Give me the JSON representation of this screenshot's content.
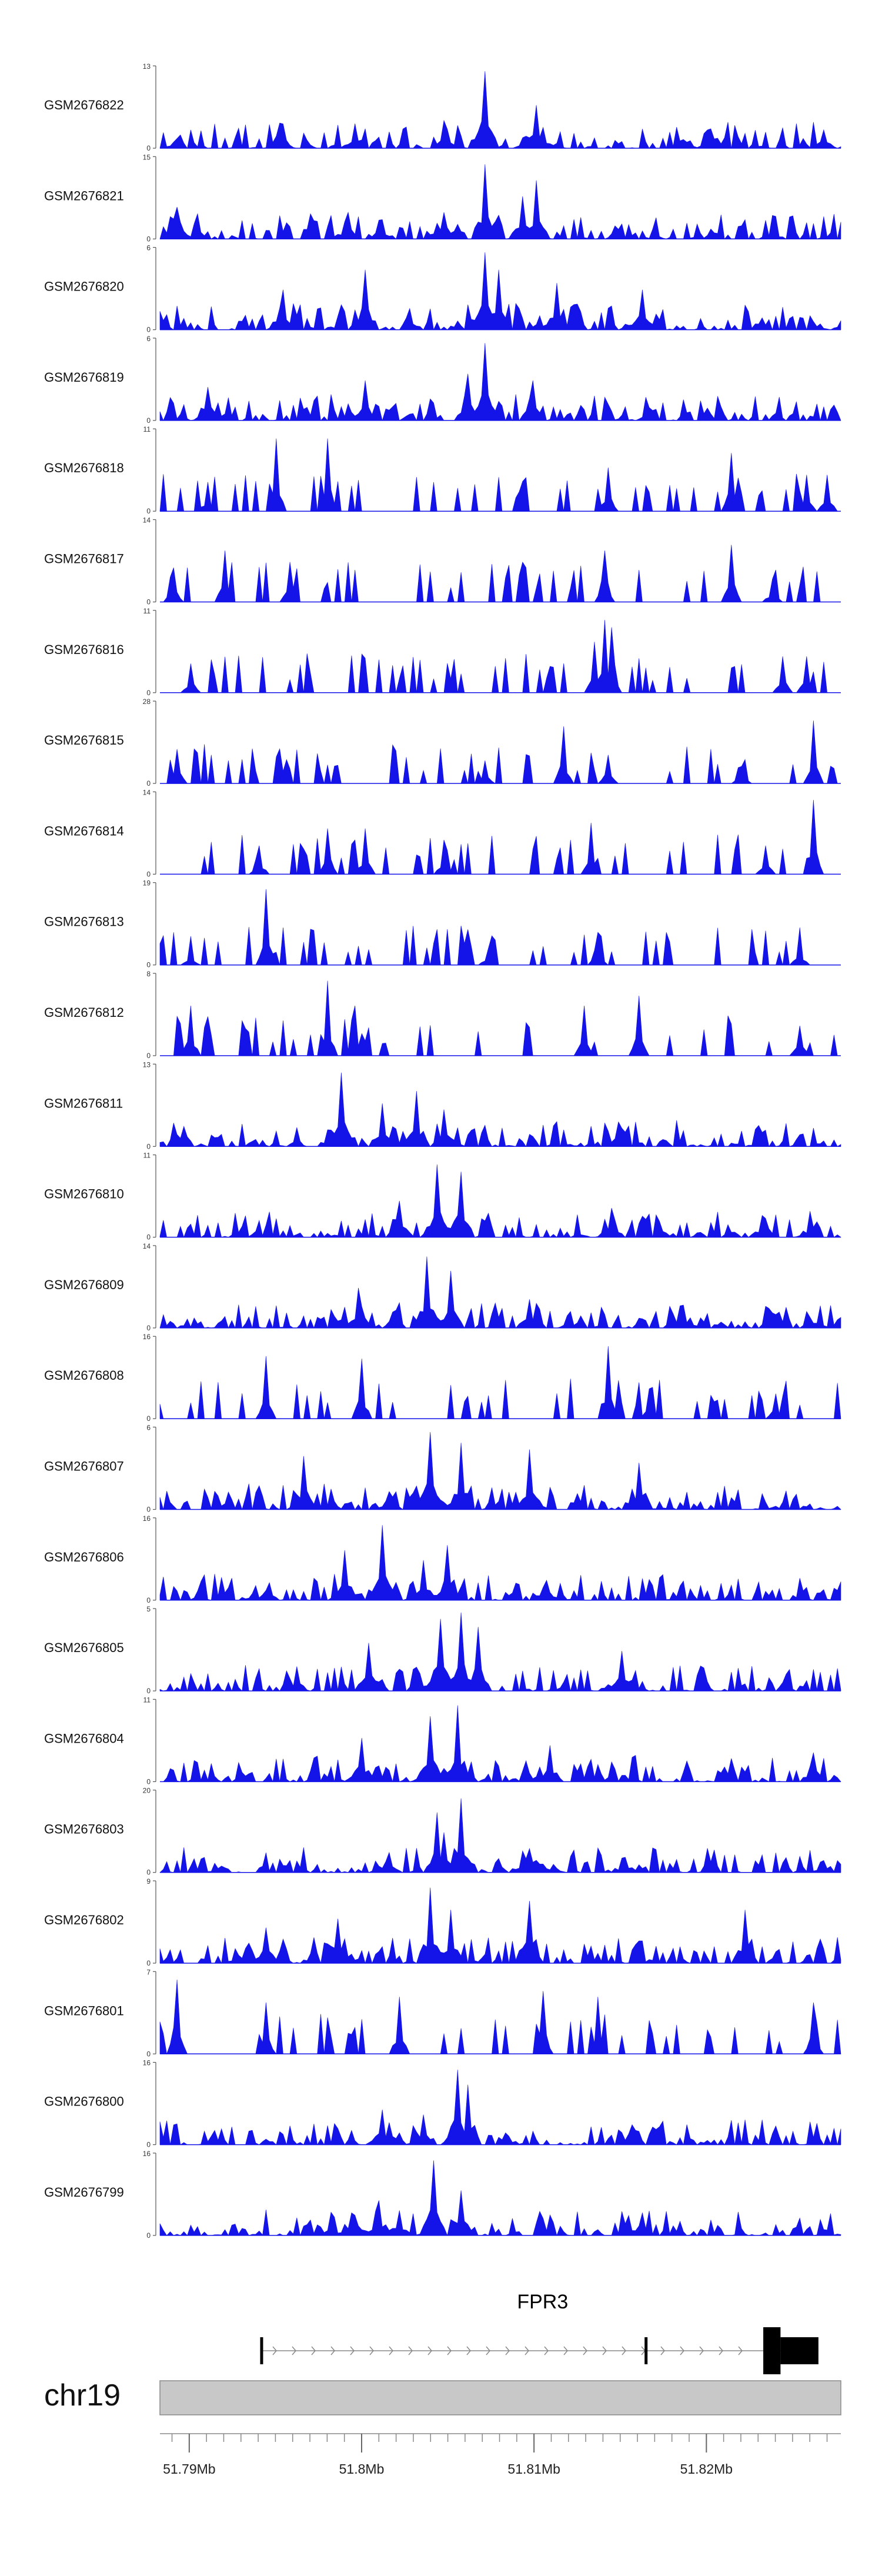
{
  "chart_data": {
    "type": "area",
    "title": "",
    "xlabel": "",
    "ylabel": "",
    "x_range": [
      51.7883,
      51.8278
    ],
    "x_unit": "Mb",
    "bins": 200,
    "color": "#1414e8",
    "chromosome": "chr19",
    "xticks": [
      {
        "value": 51.79,
        "label": "51.79Mb"
      },
      {
        "value": 51.8,
        "label": "51.8Mb"
      },
      {
        "value": 51.81,
        "label": "51.81Mb"
      },
      {
        "value": 51.82,
        "label": "51.82Mb"
      }
    ],
    "gene": {
      "name": "FPR3",
      "strand": "+",
      "start": 51.7942,
      "end": 51.8265,
      "exons": [
        {
          "start": 51.7942,
          "end": 51.79425,
          "kind": "line"
        },
        {
          "start": 51.8165,
          "end": 51.81655,
          "kind": "line"
        },
        {
          "start": 51.8233,
          "end": 51.8243,
          "kind": "block-tall"
        },
        {
          "start": 51.8243,
          "end": 51.8265,
          "kind": "block"
        }
      ]
    },
    "series": [
      {
        "name": "GSM2676822",
        "ymax": 13,
        "profile": "dense",
        "seed": 22,
        "peaks": [
          [
            51.8071,
            12.5
          ],
          [
            51.8101,
            7
          ],
          [
            51.8047,
            4.5
          ],
          [
            51.7997,
            4
          ],
          [
            51.8268,
            3
          ],
          [
            51.7953,
            4
          ]
        ]
      },
      {
        "name": "GSM2676821",
        "ymax": 15,
        "profile": "dense",
        "seed": 21,
        "peaks": [
          [
            51.8071,
            14
          ],
          [
            51.8101,
            11
          ],
          [
            51.8094,
            8
          ],
          [
            51.7893,
            6
          ],
          [
            51.8047,
            5
          ],
          [
            51.7993,
            5
          ]
        ]
      },
      {
        "name": "GSM2676820",
        "ymax": 6,
        "profile": "dense",
        "seed": 20,
        "peaks": [
          [
            51.8071,
            5.8
          ],
          [
            51.808,
            4.5
          ],
          [
            51.8003,
            4.5
          ],
          [
            51.8113,
            3.5
          ],
          [
            51.8162,
            3
          ],
          [
            51.7954,
            3
          ]
        ]
      },
      {
        "name": "GSM2676819",
        "ymax": 6,
        "profile": "dense",
        "seed": 19,
        "peaks": [
          [
            51.8071,
            5.8
          ],
          [
            51.8062,
            3.5
          ],
          [
            51.81,
            3
          ],
          [
            51.8003,
            3
          ],
          [
            51.791,
            2.5
          ]
        ]
      },
      {
        "name": "GSM2676818",
        "ymax": 11,
        "profile": "sparse",
        "seed": 18,
        "peaks": [
          [
            51.795,
            10
          ],
          [
            51.7981,
            10
          ],
          [
            51.8215,
            8
          ],
          [
            51.8143,
            6
          ],
          [
            51.8258,
            5
          ],
          [
            51.791,
            4
          ],
          [
            51.827,
            5
          ]
        ]
      },
      {
        "name": "GSM2676817",
        "ymax": 14,
        "profile": "sparse",
        "seed": 17,
        "peaks": [
          [
            51.8214,
            10
          ],
          [
            51.8141,
            9
          ],
          [
            51.792,
            9
          ],
          [
            51.7958,
            7
          ],
          [
            51.789,
            6
          ],
          [
            51.8238,
            4
          ]
        ]
      },
      {
        "name": "GSM2676816",
        "ymax": 11,
        "profile": "sparse",
        "seed": 16,
        "peaks": [
          [
            51.8142,
            10
          ],
          [
            51.8146,
            9
          ],
          [
            51.8136,
            7
          ],
          [
            51.8244,
            5
          ],
          [
            51.8258,
            5
          ],
          [
            51.79,
            4
          ]
        ]
      },
      {
        "name": "GSM2676815",
        "ymax": 28,
        "profile": "sparse",
        "seed": 15,
        "peaks": [
          [
            51.8262,
            22
          ],
          [
            51.8117,
            20
          ],
          [
            51.8071,
            8
          ],
          [
            51.7893,
            12
          ],
          [
            51.8143,
            10
          ],
          [
            51.822,
            6
          ]
        ]
      },
      {
        "name": "GSM2676814",
        "ymax": 14,
        "profile": "sparse",
        "seed": 14,
        "peaks": [
          [
            51.8263,
            13
          ],
          [
            51.8133,
            9
          ],
          [
            51.798,
            8
          ],
          [
            51.8002,
            8
          ],
          [
            51.8047,
            6
          ],
          [
            51.794,
            5
          ],
          [
            51.8235,
            5
          ]
        ]
      },
      {
        "name": "GSM2676813",
        "ymax": 19,
        "profile": "sparse",
        "seed": 13,
        "peaks": [
          [
            51.7945,
            18
          ],
          [
            51.8138,
            7
          ],
          [
            51.8255,
            6
          ],
          [
            51.79,
            4
          ],
          [
            51.8073,
            4
          ]
        ]
      },
      {
        "name": "GSM2676812",
        "ymax": 8,
        "profile": "sparse",
        "seed": 12,
        "peaks": [
          [
            51.7981,
            7.5
          ],
          [
            51.816,
            6
          ],
          [
            51.7996,
            5
          ],
          [
            51.7901,
            5
          ],
          [
            51.8129,
            5
          ],
          [
            51.8254,
            3
          ]
        ]
      },
      {
        "name": "GSM2676811",
        "ymax": 13,
        "profile": "dense",
        "seed": 11,
        "peaks": [
          [
            51.7989,
            12
          ],
          [
            51.8032,
            9
          ],
          [
            51.8012,
            7
          ],
          [
            51.8048,
            6
          ],
          [
            51.8148,
            4
          ]
        ]
      },
      {
        "name": "GSM2676810",
        "ymax": 11,
        "profile": "dense",
        "seed": 10,
        "peaks": [
          [
            51.8043,
            10
          ],
          [
            51.8058,
            9
          ],
          [
            51.8022,
            5
          ],
          [
            51.8146,
            4
          ],
          [
            51.8233,
            3
          ]
        ]
      },
      {
        "name": "GSM2676809",
        "ymax": 14,
        "profile": "dense",
        "seed": 9,
        "peaks": [
          [
            51.8038,
            12.5
          ],
          [
            51.8052,
            10
          ],
          [
            51.7999,
            7
          ],
          [
            51.8097,
            5
          ],
          [
            51.8186,
            4
          ]
        ]
      },
      {
        "name": "GSM2676808",
        "ymax": 16,
        "profile": "sparse",
        "seed": 8,
        "peaks": [
          [
            51.8143,
            14.5
          ],
          [
            51.8001,
            12
          ],
          [
            51.7944,
            12.5
          ],
          [
            51.8167,
            6
          ],
          [
            51.8241,
            5
          ]
        ]
      },
      {
        "name": "GSM2676807",
        "ymax": 6,
        "profile": "dense",
        "seed": 7,
        "peaks": [
          [
            51.8039,
            5.8
          ],
          [
            51.8058,
            5
          ],
          [
            51.8097,
            4.5
          ],
          [
            51.7967,
            4
          ],
          [
            51.816,
            3.5
          ]
        ]
      },
      {
        "name": "GSM2676806",
        "ymax": 16,
        "profile": "dense",
        "seed": 6,
        "peaks": [
          [
            51.8012,
            15
          ],
          [
            51.799,
            10
          ],
          [
            51.805,
            11
          ],
          [
            51.8035,
            8
          ],
          [
            51.8107,
            4
          ]
        ]
      },
      {
        "name": "GSM2676805",
        "ymax": 5,
        "profile": "dense",
        "seed": 5,
        "peaks": [
          [
            51.8057,
            4.9
          ],
          [
            51.8046,
            4.5
          ],
          [
            51.8067,
            4
          ],
          [
            51.8004,
            3
          ],
          [
            51.815,
            2.5
          ]
        ]
      },
      {
        "name": "GSM2676804",
        "ymax": 11,
        "profile": "dense",
        "seed": 4,
        "peaks": [
          [
            51.8056,
            10.5
          ],
          [
            51.8039,
            9
          ],
          [
            51.8001,
            6
          ],
          [
            51.811,
            5
          ],
          [
            51.8262,
            4
          ]
        ]
      },
      {
        "name": "GSM2676803",
        "ymax": 20,
        "profile": "dense",
        "seed": 3,
        "peaks": [
          [
            51.8058,
            18.5
          ],
          [
            51.8043,
            15
          ],
          [
            51.8048,
            10
          ],
          [
            51.8016,
            5
          ],
          [
            51.8268,
            3
          ]
        ]
      },
      {
        "name": "GSM2676802",
        "ymax": 9,
        "profile": "dense",
        "seed": 2,
        "peaks": [
          [
            51.804,
            8.5
          ],
          [
            51.8052,
            6
          ],
          [
            51.8098,
            7
          ],
          [
            51.8223,
            6
          ],
          [
            51.7986,
            5
          ],
          [
            51.7944,
            4
          ]
        ]
      },
      {
        "name": "GSM2676801",
        "ymax": 7,
        "profile": "sparse",
        "seed": 1,
        "peaks": [
          [
            51.7892,
            6.5
          ],
          [
            51.8106,
            5.5
          ],
          [
            51.8022,
            5
          ],
          [
            51.8138,
            5
          ],
          [
            51.7945,
            4.5
          ],
          [
            51.8262,
            4.5
          ]
        ]
      },
      {
        "name": "GSM2676800",
        "ymax": 16,
        "profile": "dense",
        "seed": 100,
        "peaks": [
          [
            51.8055,
            15
          ],
          [
            51.8061,
            12
          ],
          [
            51.8013,
            7
          ],
          [
            51.8036,
            6
          ],
          [
            51.8157,
            4
          ]
        ]
      },
      {
        "name": "GSM2676799",
        "ymax": 16,
        "profile": "dense",
        "seed": 99,
        "peaks": [
          [
            51.8042,
            15
          ],
          [
            51.8057,
            9
          ],
          [
            51.801,
            7
          ],
          [
            51.8022,
            5
          ],
          [
            51.8154,
            4
          ]
        ]
      }
    ]
  }
}
